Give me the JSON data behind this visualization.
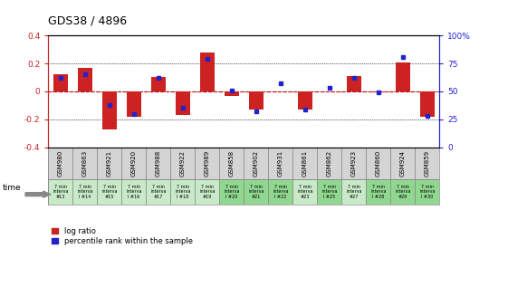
{
  "title": "GDS38 / 4896",
  "samples": [
    "GSM980",
    "GSM863",
    "GSM921",
    "GSM920",
    "GSM988",
    "GSM922",
    "GSM989",
    "GSM858",
    "GSM902",
    "GSM931",
    "GSM861",
    "GSM862",
    "GSM923",
    "GSM860",
    "GSM924",
    "GSM859"
  ],
  "time_labels": [
    "7 min\ninterva\n#13",
    "7 min\ninterva\nl #14",
    "7 min\ninterva\n#15",
    "7 min\ninterva\nl #16",
    "7 min\ninterva\n#17",
    "7 min\ninterva\nl #18",
    "7 min\ninterva\n#19",
    "7 min\ninterva\nl #20",
    "7 min\ninterva\n#21",
    "7 min\ninterva\nl #22",
    "7 min\ninterva\n#23",
    "7 min\ninterva\nl #25",
    "7 min\ninterva\n#27",
    "7 min\ninterva\nl #28",
    "7 min\ninterva\n#29",
    "7 min\ninterva\nl #30"
  ],
  "log_ratio": [
    0.12,
    0.17,
    -0.27,
    -0.18,
    0.1,
    -0.17,
    0.28,
    -0.03,
    -0.13,
    0.0,
    -0.13,
    0.0,
    0.11,
    -0.01,
    0.21,
    -0.18
  ],
  "percentile": [
    62,
    65,
    38,
    30,
    62,
    35,
    79,
    51,
    32,
    57,
    34,
    53,
    62,
    49,
    81,
    28
  ],
  "ylim_left": [
    -0.4,
    0.4
  ],
  "ylim_right": [
    0,
    100
  ],
  "bar_color": "#cc2222",
  "dot_color": "#2222cc",
  "zero_line_color": "#cc0000",
  "sample_cell_color": "#d8d8d8",
  "time_bg_light": "#c8eac8",
  "time_bg_dark": "#90d890",
  "time_bg_colors": [
    "#c8eac8",
    "#c8eac8",
    "#c8eac8",
    "#c8eac8",
    "#c8eac8",
    "#c8eac8",
    "#c8eac8",
    "#90d890",
    "#90d890",
    "#90d890",
    "#c8eac8",
    "#90d890",
    "#c8eac8",
    "#90d890",
    "#90d890",
    "#90d890"
  ]
}
